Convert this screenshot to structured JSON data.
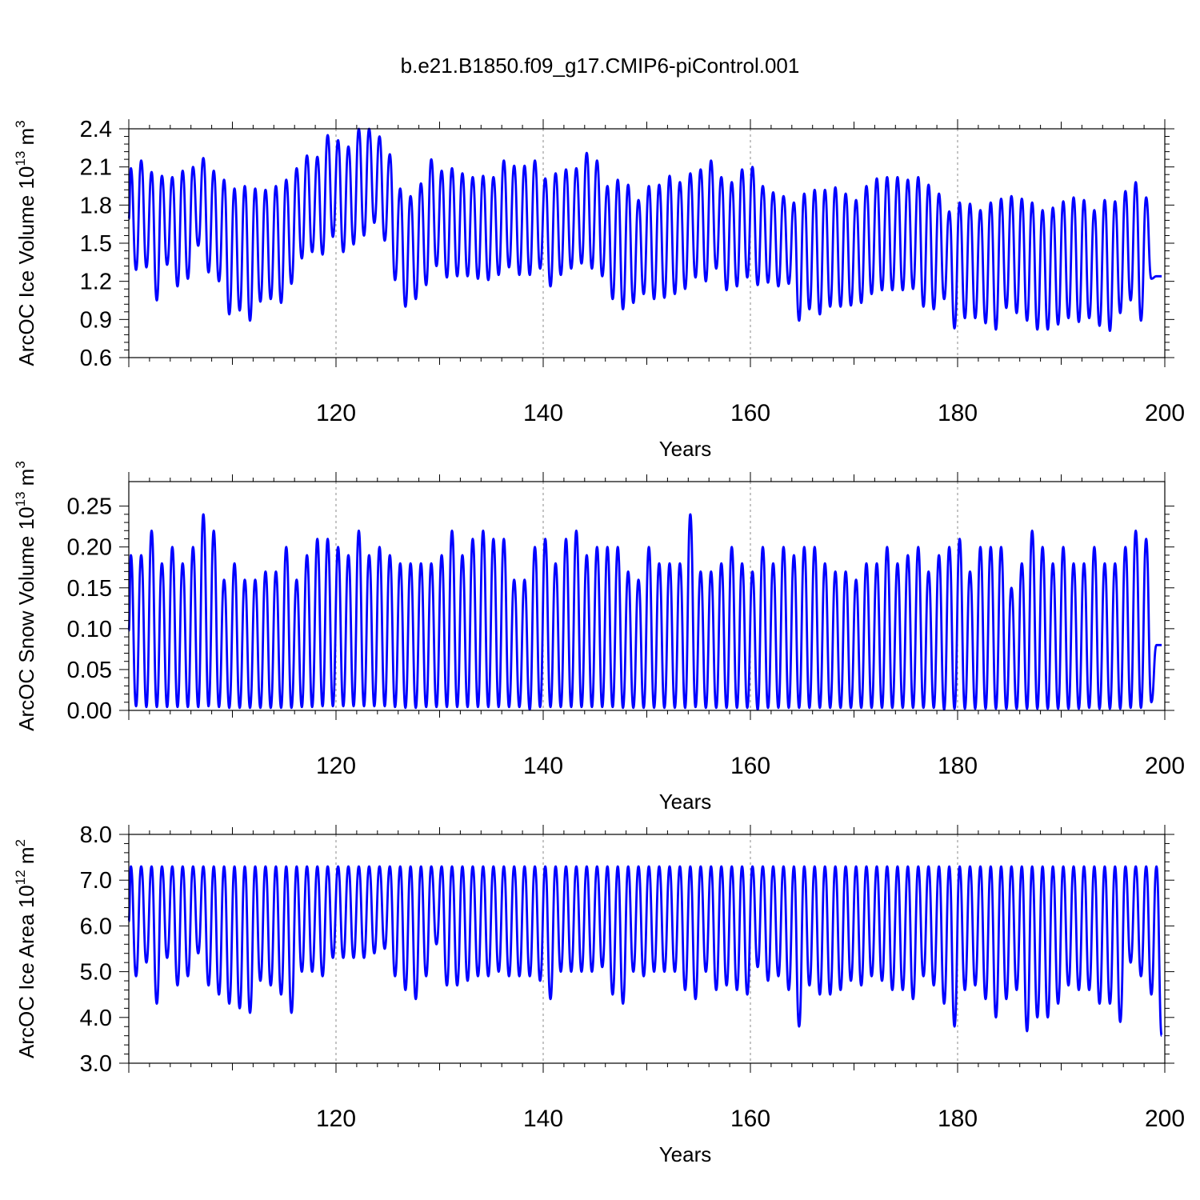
{
  "title": "b.e21.B1850.f09_g17.CMIP6-piControl.001",
  "colors": {
    "series": "#0000ff"
  },
  "chart_data": [
    {
      "type": "line",
      "id": "ice-volume",
      "ylabel": "ArcOC Ice Volume 10",
      "ylabel_sup": "13",
      "ylabel_unit": " m",
      "ylabel_unit_sup": "3",
      "xlabel": "Years",
      "xlim": [
        100,
        200
      ],
      "ylim": [
        0.6,
        2.4
      ],
      "xticks": [
        120,
        140,
        160,
        180,
        200
      ],
      "yticks": [
        "0.6",
        "0.9",
        "1.2",
        "1.5",
        "1.8",
        "2.1",
        "2.4"
      ],
      "grid": "dashed vertical at major x ticks",
      "series": [
        {
          "sampling": "annual seasonal cycle, peak (spring max) and trough (autumn min) per model year",
          "x_start": 100.2,
          "peaks": [
            2.09,
            2.15,
            2.06,
            2.03,
            2.02,
            2.07,
            2.1,
            2.17,
            2.07,
            2.0,
            1.93,
            1.95,
            1.93,
            1.92,
            1.95,
            2.0,
            2.09,
            2.19,
            2.18,
            2.35,
            2.31,
            2.26,
            2.4,
            2.4,
            2.34,
            2.2,
            1.93,
            1.87,
            1.97,
            2.16,
            2.07,
            2.09,
            2.05,
            2.02,
            2.03,
            2.02,
            2.15,
            2.11,
            2.11,
            2.15,
            2.01,
            2.05,
            2.08,
            2.09,
            2.21,
            2.15,
            1.95,
            2.0,
            1.96,
            1.84,
            1.95,
            1.96,
            2.03,
            1.98,
            2.05,
            2.08,
            2.15,
            2.02,
            1.98,
            2.08,
            2.1,
            1.95,
            1.9,
            1.87,
            1.82,
            1.89,
            1.92,
            1.92,
            1.94,
            1.89,
            1.84,
            1.95,
            2.01,
            2.02,
            2.02,
            2.0,
            2.02,
            1.96,
            1.89,
            1.75,
            1.82,
            1.81,
            1.76,
            1.82,
            1.85,
            1.87,
            1.85,
            1.82,
            1.76,
            1.78,
            1.83,
            1.86,
            1.84,
            1.76,
            1.84,
            1.83,
            1.91,
            1.98,
            1.86,
            1.24
          ],
          "troughs": [
            1.29,
            1.31,
            1.05,
            1.33,
            1.16,
            1.22,
            1.48,
            1.27,
            1.2,
            0.94,
            0.97,
            0.89,
            1.04,
            1.06,
            1.03,
            1.18,
            1.38,
            1.43,
            1.41,
            1.55,
            1.43,
            1.49,
            1.56,
            1.66,
            1.52,
            1.21,
            1.0,
            1.06,
            1.17,
            1.32,
            1.23,
            1.24,
            1.24,
            1.22,
            1.21,
            1.25,
            1.31,
            1.25,
            1.25,
            1.3,
            1.16,
            1.25,
            1.3,
            1.34,
            1.3,
            1.24,
            1.06,
            0.98,
            1.03,
            1.1,
            1.06,
            1.07,
            1.1,
            1.14,
            1.23,
            1.2,
            1.3,
            1.13,
            1.16,
            1.23,
            1.17,
            1.19,
            1.16,
            1.18,
            0.89,
            0.98,
            0.94,
            1.0,
            1.0,
            1.01,
            1.03,
            1.1,
            1.13,
            1.13,
            1.13,
            1.14,
            1.0,
            0.98,
            1.06,
            0.83,
            0.91,
            0.91,
            0.87,
            0.82,
            0.99,
            0.95,
            0.89,
            0.82,
            0.82,
            0.86,
            0.91,
            0.88,
            0.91,
            0.85,
            0.81,
            0.95,
            1.05,
            0.89,
            1.22,
            1.24
          ]
        }
      ]
    },
    {
      "type": "line",
      "id": "snow-volume",
      "ylabel": "ArcOC Snow Volume 10",
      "ylabel_sup": "13",
      "ylabel_unit": " m",
      "ylabel_unit_sup": "3",
      "xlabel": "Years",
      "xlim": [
        100,
        200
      ],
      "ylim": [
        0.0,
        0.28
      ],
      "xticks": [
        120,
        140,
        160,
        180,
        200
      ],
      "yticks": [
        "0.00",
        "0.05",
        "0.10",
        "0.15",
        "0.20",
        "0.25"
      ],
      "grid": "dashed vertical at major x ticks",
      "series": [
        {
          "sampling": "annual seasonal cycle, peak (spring max) and trough (autumn min) per model year",
          "x_start": 100.2,
          "peaks": [
            0.19,
            0.19,
            0.22,
            0.18,
            0.2,
            0.18,
            0.2,
            0.24,
            0.22,
            0.16,
            0.18,
            0.16,
            0.16,
            0.17,
            0.17,
            0.2,
            0.16,
            0.19,
            0.21,
            0.21,
            0.2,
            0.19,
            0.22,
            0.19,
            0.2,
            0.19,
            0.18,
            0.18,
            0.18,
            0.18,
            0.19,
            0.22,
            0.19,
            0.21,
            0.22,
            0.21,
            0.21,
            0.16,
            0.16,
            0.2,
            0.21,
            0.18,
            0.21,
            0.22,
            0.19,
            0.2,
            0.2,
            0.2,
            0.17,
            0.16,
            0.2,
            0.18,
            0.18,
            0.18,
            0.24,
            0.17,
            0.17,
            0.18,
            0.2,
            0.18,
            0.17,
            0.2,
            0.18,
            0.2,
            0.19,
            0.2,
            0.2,
            0.18,
            0.17,
            0.17,
            0.16,
            0.18,
            0.18,
            0.2,
            0.18,
            0.19,
            0.2,
            0.17,
            0.19,
            0.2,
            0.21,
            0.17,
            0.2,
            0.2,
            0.2,
            0.15,
            0.18,
            0.22,
            0.2,
            0.18,
            0.2,
            0.18,
            0.18,
            0.2,
            0.18,
            0.18,
            0.2,
            0.22,
            0.21,
            0.08
          ],
          "troughs": [
            0.005,
            0.004,
            0.004,
            0.004,
            0.004,
            0.004,
            0.004,
            0.005,
            0.004,
            0.003,
            0.003,
            0.003,
            0.003,
            0.003,
            0.003,
            0.003,
            0.004,
            0.004,
            0.005,
            0.005,
            0.005,
            0.005,
            0.005,
            0.005,
            0.005,
            0.004,
            0.003,
            0.003,
            0.004,
            0.004,
            0.004,
            0.004,
            0.004,
            0.004,
            0.004,
            0.004,
            0.004,
            0.004,
            0.001,
            0.004,
            0.004,
            0.004,
            0.004,
            0.004,
            0.004,
            0.004,
            0.004,
            0.003,
            0.003,
            0.003,
            0.003,
            0.003,
            0.003,
            0.003,
            0.004,
            0.003,
            0.003,
            0.003,
            0.003,
            0.003,
            0.001,
            0.003,
            0.003,
            0.003,
            0.003,
            0.003,
            0.003,
            0.003,
            0.003,
            0.003,
            0.003,
            0.003,
            0.003,
            0.003,
            0.003,
            0.003,
            0.003,
            0.003,
            0.001,
            0.002,
            0.002,
            0.002,
            0.002,
            0.002,
            0.002,
            0.002,
            0.002,
            0.002,
            0.002,
            0.002,
            0.002,
            0.002,
            0.003,
            0.002,
            0.002,
            0.002,
            0.003,
            0.003,
            0.01,
            0.08
          ]
        }
      ]
    },
    {
      "type": "line",
      "id": "ice-area",
      "ylabel": "ArcOC Ice Area 10",
      "ylabel_sup": "12",
      "ylabel_unit": " m",
      "ylabel_unit_sup": "2",
      "xlabel": "Years",
      "xlim": [
        100,
        200
      ],
      "ylim": [
        3.0,
        8.0
      ],
      "xticks": [
        120,
        140,
        160,
        180,
        200
      ],
      "yticks": [
        "3.0",
        "4.0",
        "5.0",
        "6.0",
        "7.0",
        "8.0"
      ],
      "grid": "dashed vertical at major x ticks",
      "series": [
        {
          "sampling": "annual seasonal cycle, peak (winter max) and trough (summer min) per model year",
          "x_start": 100.2,
          "peaks": [
            7.3,
            7.3,
            7.3,
            7.3,
            7.3,
            7.3,
            7.3,
            7.3,
            7.3,
            7.3,
            7.3,
            7.3,
            7.3,
            7.3,
            7.3,
            7.3,
            7.3,
            7.3,
            7.3,
            7.3,
            7.3,
            7.3,
            7.3,
            7.3,
            7.3,
            7.3,
            7.3,
            7.3,
            7.3,
            7.3,
            7.3,
            7.3,
            7.3,
            7.3,
            7.3,
            7.3,
            7.3,
            7.3,
            7.3,
            7.3,
            7.3,
            7.3,
            7.3,
            7.3,
            7.3,
            7.3,
            7.3,
            7.3,
            7.3,
            7.3,
            7.3,
            7.3,
            7.3,
            7.3,
            7.3,
            7.3,
            7.3,
            7.3,
            7.3,
            7.3,
            7.3,
            7.3,
            7.3,
            7.3,
            7.3,
            7.3,
            7.3,
            7.3,
            7.3,
            7.3,
            7.3,
            7.3,
            7.3,
            7.3,
            7.3,
            7.3,
            7.3,
            7.3,
            7.3,
            7.3,
            7.3,
            7.3,
            7.3,
            7.3,
            7.3,
            7.3,
            7.3,
            7.3,
            7.3,
            7.3,
            7.3,
            7.3,
            7.3,
            7.3,
            7.3,
            7.3,
            7.3,
            7.3,
            7.3,
            7.3
          ],
          "troughs": [
            4.9,
            5.2,
            4.3,
            5.3,
            4.7,
            4.9,
            5.4,
            4.7,
            4.5,
            4.3,
            4.2,
            4.1,
            4.8,
            4.7,
            4.5,
            4.1,
            5.0,
            5.0,
            4.9,
            5.3,
            5.3,
            5.3,
            5.3,
            5.4,
            5.5,
            4.9,
            4.6,
            4.4,
            4.9,
            5.6,
            4.7,
            4.7,
            4.8,
            4.9,
            4.9,
            5.0,
            4.9,
            4.9,
            4.9,
            4.8,
            4.4,
            5.0,
            5.0,
            5.0,
            5.0,
            5.1,
            4.5,
            4.3,
            5.0,
            4.9,
            5.0,
            5.0,
            5.0,
            4.6,
            4.4,
            5.0,
            4.6,
            4.7,
            4.6,
            4.5,
            5.1,
            4.8,
            4.9,
            4.6,
            3.8,
            4.7,
            4.5,
            4.5,
            4.6,
            4.8,
            4.7,
            4.9,
            4.8,
            4.6,
            4.6,
            4.4,
            4.9,
            4.7,
            4.3,
            3.8,
            4.6,
            4.7,
            4.4,
            4.0,
            4.4,
            4.6,
            3.7,
            4.0,
            4.0,
            4.3,
            4.7,
            4.6,
            4.6,
            4.3,
            4.3,
            3.9,
            5.2,
            4.9,
            4.5,
            3.6
          ]
        }
      ]
    }
  ]
}
